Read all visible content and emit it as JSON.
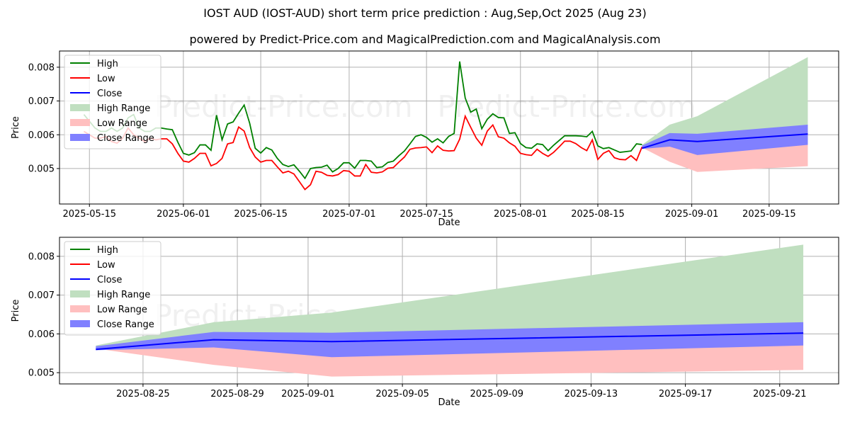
{
  "title": "IOST AUD (IOST-AUD) short term price prediction : Aug,Sep,Oct 2025 (Aug 23)",
  "subtitle": "powered by Predict-Price.com and MagicalPrediction.com and MagicalAnalysis.com",
  "watermark": "Predict-Price.com",
  "colors": {
    "high": "#008000",
    "low": "#ff0000",
    "close": "#0000ff",
    "high_range": "#c0dfc0",
    "low_range": "#ffbfbf",
    "close_range": "#8080ff"
  },
  "chart_data": [
    {
      "type": "line",
      "title": "",
      "xlabel": "Date",
      "ylabel": "Price",
      "xlim": [
        "2025-05-09T14:00:00Z",
        "2025-09-27T14:00:00Z"
      ],
      "ylim": [
        0.00395,
        0.00848
      ],
      "grid": true,
      "legend_placement": "top-left",
      "legend": [
        "High",
        "Low",
        "Close",
        "High Range",
        "Low Range",
        "Close Range"
      ],
      "x_ticks": [
        "2025-05-15",
        "2025-06-01",
        "2025-06-15",
        "2025-07-01",
        "2025-07-15",
        "2025-08-01",
        "2025-08-15",
        "2025-09-01",
        "2025-09-15"
      ],
      "y_ticks": [
        "0.005",
        "0.006",
        "0.007",
        "0.008"
      ],
      "history_start": "2025-05-14",
      "high": [
        0.0066,
        0.0064,
        0.0062,
        0.0061,
        0.0061,
        0.0062,
        0.0061,
        0.0062,
        0.0065,
        0.0066,
        0.0062,
        0.0061,
        0.0061,
        0.0062,
        0.0062,
        0.00617,
        0.00615,
        0.00578,
        0.00545,
        0.0054,
        0.00547,
        0.0057,
        0.0057,
        0.00554,
        0.00658,
        0.00585,
        0.00632,
        0.00638,
        0.00664,
        0.00688,
        0.00634,
        0.0056,
        0.00546,
        0.00562,
        0.00555,
        0.0053,
        0.00512,
        0.00506,
        0.00511,
        0.00492,
        0.00471,
        0.005,
        0.00503,
        0.00504,
        0.0051,
        0.0049,
        0.005,
        0.00517,
        0.00517,
        0.00501,
        0.00524,
        0.00524,
        0.00522,
        0.00503,
        0.00505,
        0.00518,
        0.00522,
        0.00538,
        0.00552,
        0.00573,
        0.00595,
        0.006,
        0.00592,
        0.00578,
        0.00588,
        0.00576,
        0.00595,
        0.00604,
        0.00817,
        0.00709,
        0.00667,
        0.00676,
        0.00618,
        0.00646,
        0.00662,
        0.00651,
        0.0065,
        0.00604,
        0.00606,
        0.00574,
        0.00562,
        0.0056,
        0.00573,
        0.00571,
        0.00553,
        0.00569,
        0.00583,
        0.00597,
        0.00597,
        0.00597,
        0.00596,
        0.00594,
        0.0061,
        0.00567,
        0.00559,
        0.00562,
        0.00555,
        0.00548,
        0.0055,
        0.00552,
        0.00573,
        0.00571
      ],
      "low": [
        0.0061,
        0.006,
        0.0059,
        0.0059,
        0.00595,
        0.0058,
        0.00575,
        0.0059,
        0.0062,
        0.006,
        0.0059,
        0.0058,
        0.0059,
        0.00585,
        0.00588,
        0.00588,
        0.00573,
        0.00545,
        0.00522,
        0.00519,
        0.0053,
        0.00545,
        0.00545,
        0.00508,
        0.00515,
        0.0053,
        0.00573,
        0.00577,
        0.00623,
        0.00611,
        0.00562,
        0.00534,
        0.00519,
        0.00524,
        0.00524,
        0.00505,
        0.00487,
        0.00492,
        0.00484,
        0.00461,
        0.00438,
        0.00452,
        0.00492,
        0.00489,
        0.0048,
        0.00478,
        0.00482,
        0.00494,
        0.00492,
        0.00478,
        0.00478,
        0.00512,
        0.00489,
        0.00487,
        0.0049,
        0.00501,
        0.00503,
        0.00519,
        0.00534,
        0.00557,
        0.00561,
        0.00562,
        0.00564,
        0.00547,
        0.00567,
        0.00554,
        0.00552,
        0.00553,
        0.00587,
        0.00655,
        0.00622,
        0.0059,
        0.00569,
        0.00611,
        0.00629,
        0.00594,
        0.0059,
        0.00576,
        0.00566,
        0.00545,
        0.00541,
        0.00539,
        0.00557,
        0.00545,
        0.00536,
        0.00548,
        0.00564,
        0.00581,
        0.00581,
        0.00574,
        0.00562,
        0.00553,
        0.00585,
        0.00527,
        0.00545,
        0.00553,
        0.00532,
        0.00527,
        0.00526,
        0.00538,
        0.00524,
        0.00564
      ],
      "forecast": {
        "dates": [
          "2025-08-23",
          "2025-08-28",
          "2025-09-02",
          "2025-09-22"
        ],
        "close": [
          0.0056,
          0.00585,
          0.0058,
          0.00602
        ],
        "close_range_high": [
          0.00568,
          0.00605,
          0.00603,
          0.0063
        ],
        "close_range_low": [
          0.00558,
          0.00565,
          0.0054,
          0.0057
        ],
        "high_range_high": [
          0.0057,
          0.0063,
          0.00655,
          0.0083
        ],
        "low_range_low": [
          0.00562,
          0.0052,
          0.0049,
          0.00507
        ]
      }
    },
    {
      "type": "line",
      "title": "",
      "xlabel": "Date",
      "ylabel": "Price",
      "xlim": [
        "2025-08-21T11:00:00Z",
        "2025-09-23T12:00:00Z"
      ],
      "ylim": [
        0.00471,
        0.00849
      ],
      "grid": true,
      "legend_placement": "top-left",
      "legend": [
        "High",
        "Low",
        "Close",
        "High Range",
        "Low Range",
        "Close Range"
      ],
      "x_ticks": [
        "2025-08-25",
        "2025-08-29",
        "2025-09-01",
        "2025-09-05",
        "2025-09-09",
        "2025-09-13",
        "2025-09-17",
        "2025-09-21"
      ],
      "y_ticks": [
        "0.005",
        "0.006",
        "0.007",
        "0.008"
      ],
      "uses_forecast_of_chart": 0
    }
  ]
}
